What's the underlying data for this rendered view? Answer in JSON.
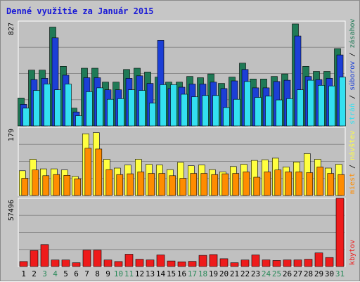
{
  "chart_data": {
    "title": "Denné využitie za Január 2015",
    "days": [
      "1",
      "2",
      "3",
      "4",
      "5",
      "6",
      "7",
      "8",
      "9",
      "10",
      "11",
      "12",
      "13",
      "14",
      "15",
      "16",
      "17",
      "18",
      "19",
      "20",
      "21",
      "22",
      "23",
      "24",
      "25",
      "26",
      "27",
      "28",
      "29",
      "30",
      "31"
    ],
    "weekend_days": [
      "3",
      "4",
      "10",
      "11",
      "17",
      "18",
      "24",
      "25",
      "31"
    ],
    "colors": {
      "day_label": "#000000",
      "weekend_label": "#2a8a5a",
      "zasahov": "#1f7a56",
      "suborov": "#1c3fd6",
      "stran": "#33e0f0",
      "navstev": "#ffff40",
      "miest": "#ff8c00",
      "kbytov": "#ee1b1b"
    },
    "panels": [
      {
        "type": "bar",
        "ytick": "827",
        "ylim": [
          0,
          827
        ],
        "legend_labels": [
          "stráň",
          "súborov",
          "zásahov"
        ],
        "series": [
          {
            "key": "zasahov",
            "values": [
              220,
              440,
              440,
              780,
              470,
              140,
              455,
              455,
              345,
              345,
              445,
              455,
              425,
              385,
              345,
              345,
              390,
              380,
              410,
              335,
              385,
              495,
              370,
              370,
              390,
              410,
              805,
              470,
              430,
              430,
              610
            ]
          },
          {
            "key": "suborov",
            "values": [
              170,
              365,
              375,
              695,
              400,
              110,
              380,
              380,
              285,
              285,
              375,
              395,
              335,
              675,
              295,
              305,
              330,
              330,
              345,
              295,
              355,
              445,
              300,
              300,
              350,
              360,
              710,
              390,
              365,
              375,
              560
            ]
          },
          {
            "key": "stran",
            "values": [
              140,
              280,
              330,
              285,
              330,
              80,
              270,
              300,
              210,
              215,
              285,
              280,
              180,
              325,
              325,
              250,
              230,
              240,
              240,
              145,
              210,
              350,
              225,
              235,
              205,
              215,
              285,
              360,
              320,
              315,
              385
            ]
          }
        ]
      },
      {
        "type": "bar",
        "ytick": "179",
        "ylim": [
          0,
          179
        ],
        "legend_labels": [
          "miest",
          "návštev"
        ],
        "series": [
          {
            "key": "navstev",
            "values": [
              65,
              95,
              70,
              70,
              67,
              50,
              162,
              165,
              95,
              72,
              80,
              95,
              82,
              80,
              68,
              87,
              78,
              80,
              68,
              62,
              76,
              82,
              92,
              94,
              98,
              75,
              88,
              110,
              95,
              72,
              82
            ]
          },
          {
            "key": "miest",
            "values": [
              45,
              67,
              52,
              55,
              53,
              44,
              124,
              122,
              68,
              55,
              57,
              62,
              58,
              58,
              52,
              45,
              58,
              58,
              55,
              57,
              58,
              62,
              48,
              62,
              67,
              62,
              62,
              60,
              75,
              58,
              55
            ]
          }
        ]
      },
      {
        "type": "bar",
        "ytick": "57496",
        "ylim": [
          0,
          57496
        ],
        "legend_labels": [
          "kbytov"
        ],
        "series": [
          {
            "key": "kbytov",
            "values": [
              4200,
              13500,
              18500,
              5500,
              5500,
              3200,
              13800,
              13800,
              5500,
              4200,
              10400,
              6100,
              5600,
              9800,
              4700,
              4000,
              4300,
              9400,
              10100,
              6600,
              3200,
              5500,
              9800,
              5600,
              5100,
              5600,
              5600,
              6100,
              11500,
              7600,
              57496
            ]
          }
        ]
      }
    ]
  }
}
